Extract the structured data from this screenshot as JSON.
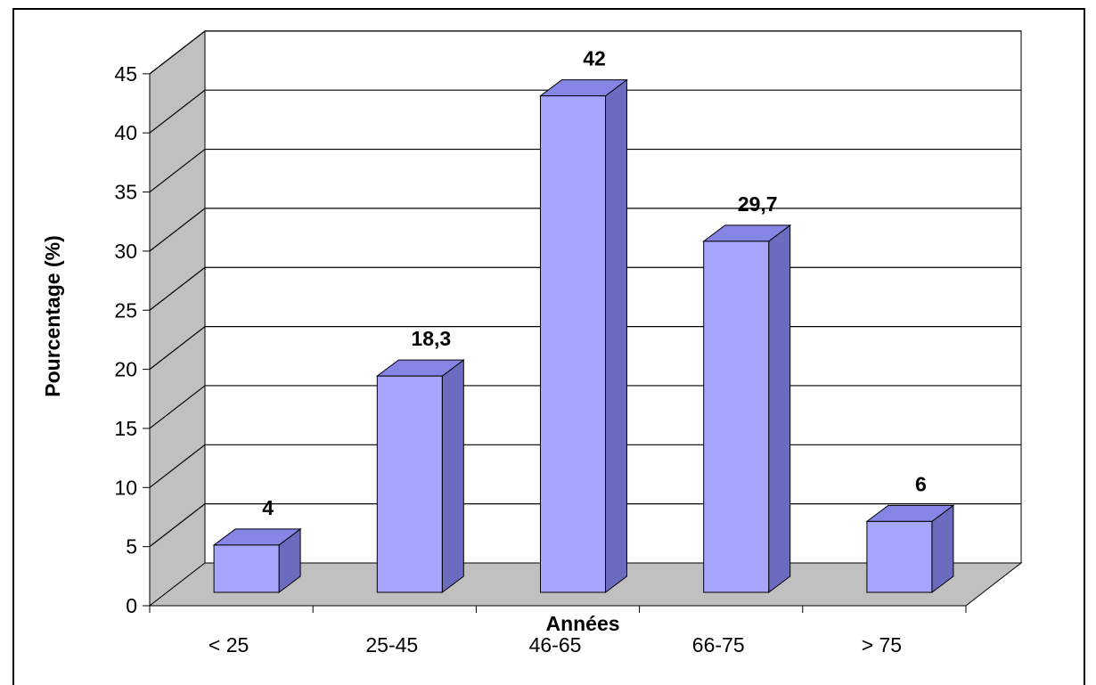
{
  "chart_data": {
    "type": "bar",
    "categories": [
      "< 25",
      "25-45",
      "46-65",
      "66-75",
      "> 75"
    ],
    "values": [
      4,
      18.3,
      42,
      29.7,
      6
    ],
    "value_labels": [
      "4",
      "18,3",
      "42",
      "29,7",
      "6"
    ],
    "xlabel": "Années",
    "ylabel": "Pourcentage (%)",
    "ylim": [
      0,
      45
    ],
    "yticks": [
      "0",
      "5",
      "10",
      "15",
      "20",
      "25",
      "30",
      "35",
      "40",
      "45"
    ],
    "grid": true,
    "style": "3d",
    "colors": {
      "bar_front": "#a6a6ff",
      "bar_side": "#6b6bbf",
      "bar_top": "#8585e6",
      "wall": "#c0c0c0",
      "floor": "#c0c0c0"
    }
  }
}
